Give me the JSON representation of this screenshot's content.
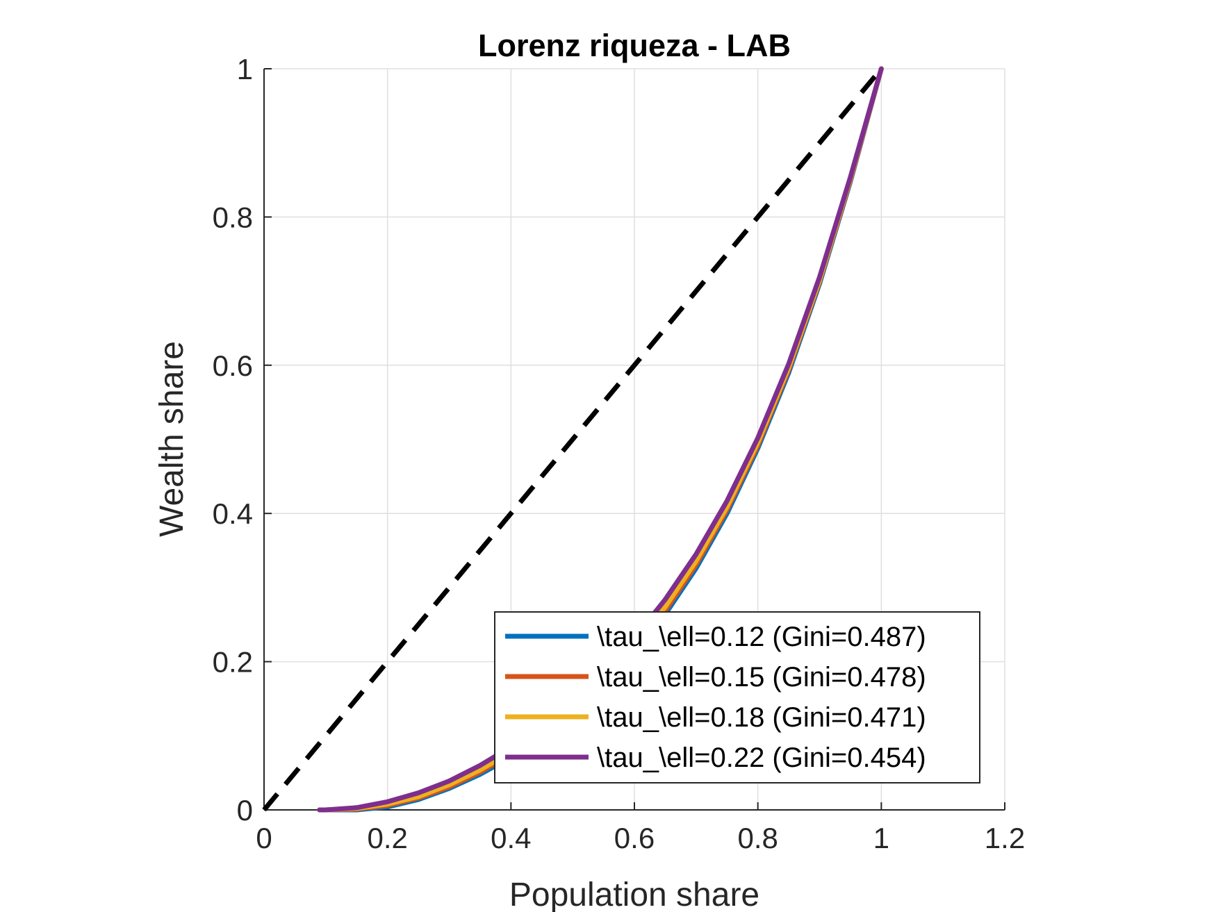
{
  "chart_data": {
    "type": "line",
    "title": "Lorenz riqueza - LAB",
    "xlabel": "Population share",
    "ylabel": "Wealth share",
    "xlim": [
      0,
      1.2
    ],
    "ylim": [
      0,
      1
    ],
    "xticks": [
      0,
      0.2,
      0.4,
      0.6,
      0.8,
      1,
      1.2
    ],
    "xtick_labels": [
      "0",
      "0.2",
      "0.4",
      "0.6",
      "0.8",
      "1",
      "1.2"
    ],
    "yticks": [
      0,
      0.2,
      0.4,
      0.6,
      0.8,
      1
    ],
    "ytick_labels": [
      "0",
      "0.2",
      "0.4",
      "0.6",
      "0.8",
      "1"
    ],
    "grid": true,
    "legend_position": "bottom-right",
    "reference_line": {
      "x": [
        0,
        1
      ],
      "y": [
        0,
        1
      ],
      "style": "dashed",
      "color": "#000000"
    },
    "series": [
      {
        "name": "\\tau_\\ell=0.12 (Gini=0.487)",
        "color": "#0072BD",
        "x": [
          0.09,
          0.1,
          0.15,
          0.2,
          0.25,
          0.3,
          0.35,
          0.4,
          0.45,
          0.5,
          0.55,
          0.6,
          0.65,
          0.7,
          0.75,
          0.8,
          0.85,
          0.9,
          0.95,
          1.0
        ],
        "y": [
          0,
          0,
          0,
          0.004,
          0.014,
          0.029,
          0.048,
          0.071,
          0.099,
          0.131,
          0.168,
          0.212,
          0.264,
          0.326,
          0.4,
          0.488,
          0.59,
          0.71,
          0.848,
          1.0
        ]
      },
      {
        "name": "\\tau_\\ell=0.15 (Gini=0.478)",
        "color": "#D95319",
        "x": [
          0.09,
          0.1,
          0.15,
          0.2,
          0.25,
          0.3,
          0.35,
          0.4,
          0.45,
          0.5,
          0.55,
          0.6,
          0.65,
          0.7,
          0.75,
          0.8,
          0.85,
          0.9,
          0.95,
          1.0
        ],
        "y": [
          0,
          0,
          0.001,
          0.006,
          0.016,
          0.031,
          0.051,
          0.075,
          0.103,
          0.136,
          0.173,
          0.217,
          0.269,
          0.331,
          0.405,
          0.492,
          0.594,
          0.713,
          0.85,
          1.0
        ]
      },
      {
        "name": "\\tau_\\ell=0.18 (Gini=0.471)",
        "color": "#EDB120",
        "x": [
          0.09,
          0.1,
          0.15,
          0.2,
          0.25,
          0.3,
          0.35,
          0.4,
          0.45,
          0.5,
          0.55,
          0.6,
          0.65,
          0.7,
          0.75,
          0.8,
          0.85,
          0.9,
          0.95,
          1.0
        ],
        "y": [
          0,
          0,
          0.002,
          0.008,
          0.018,
          0.034,
          0.054,
          0.078,
          0.107,
          0.14,
          0.178,
          0.222,
          0.274,
          0.336,
          0.409,
          0.496,
          0.597,
          0.715,
          0.852,
          1.0
        ]
      },
      {
        "name": "\\tau_\\ell=0.22 (Gini=0.454)",
        "color": "#7E2F8E",
        "x": [
          0.09,
          0.1,
          0.15,
          0.2,
          0.25,
          0.3,
          0.35,
          0.4,
          0.45,
          0.5,
          0.55,
          0.6,
          0.65,
          0.7,
          0.75,
          0.8,
          0.85,
          0.9,
          0.95,
          1.0
        ],
        "y": [
          0,
          0,
          0.003,
          0.011,
          0.023,
          0.039,
          0.06,
          0.085,
          0.115,
          0.149,
          0.187,
          0.232,
          0.284,
          0.345,
          0.417,
          0.502,
          0.602,
          0.719,
          0.854,
          1.0
        ]
      }
    ]
  }
}
